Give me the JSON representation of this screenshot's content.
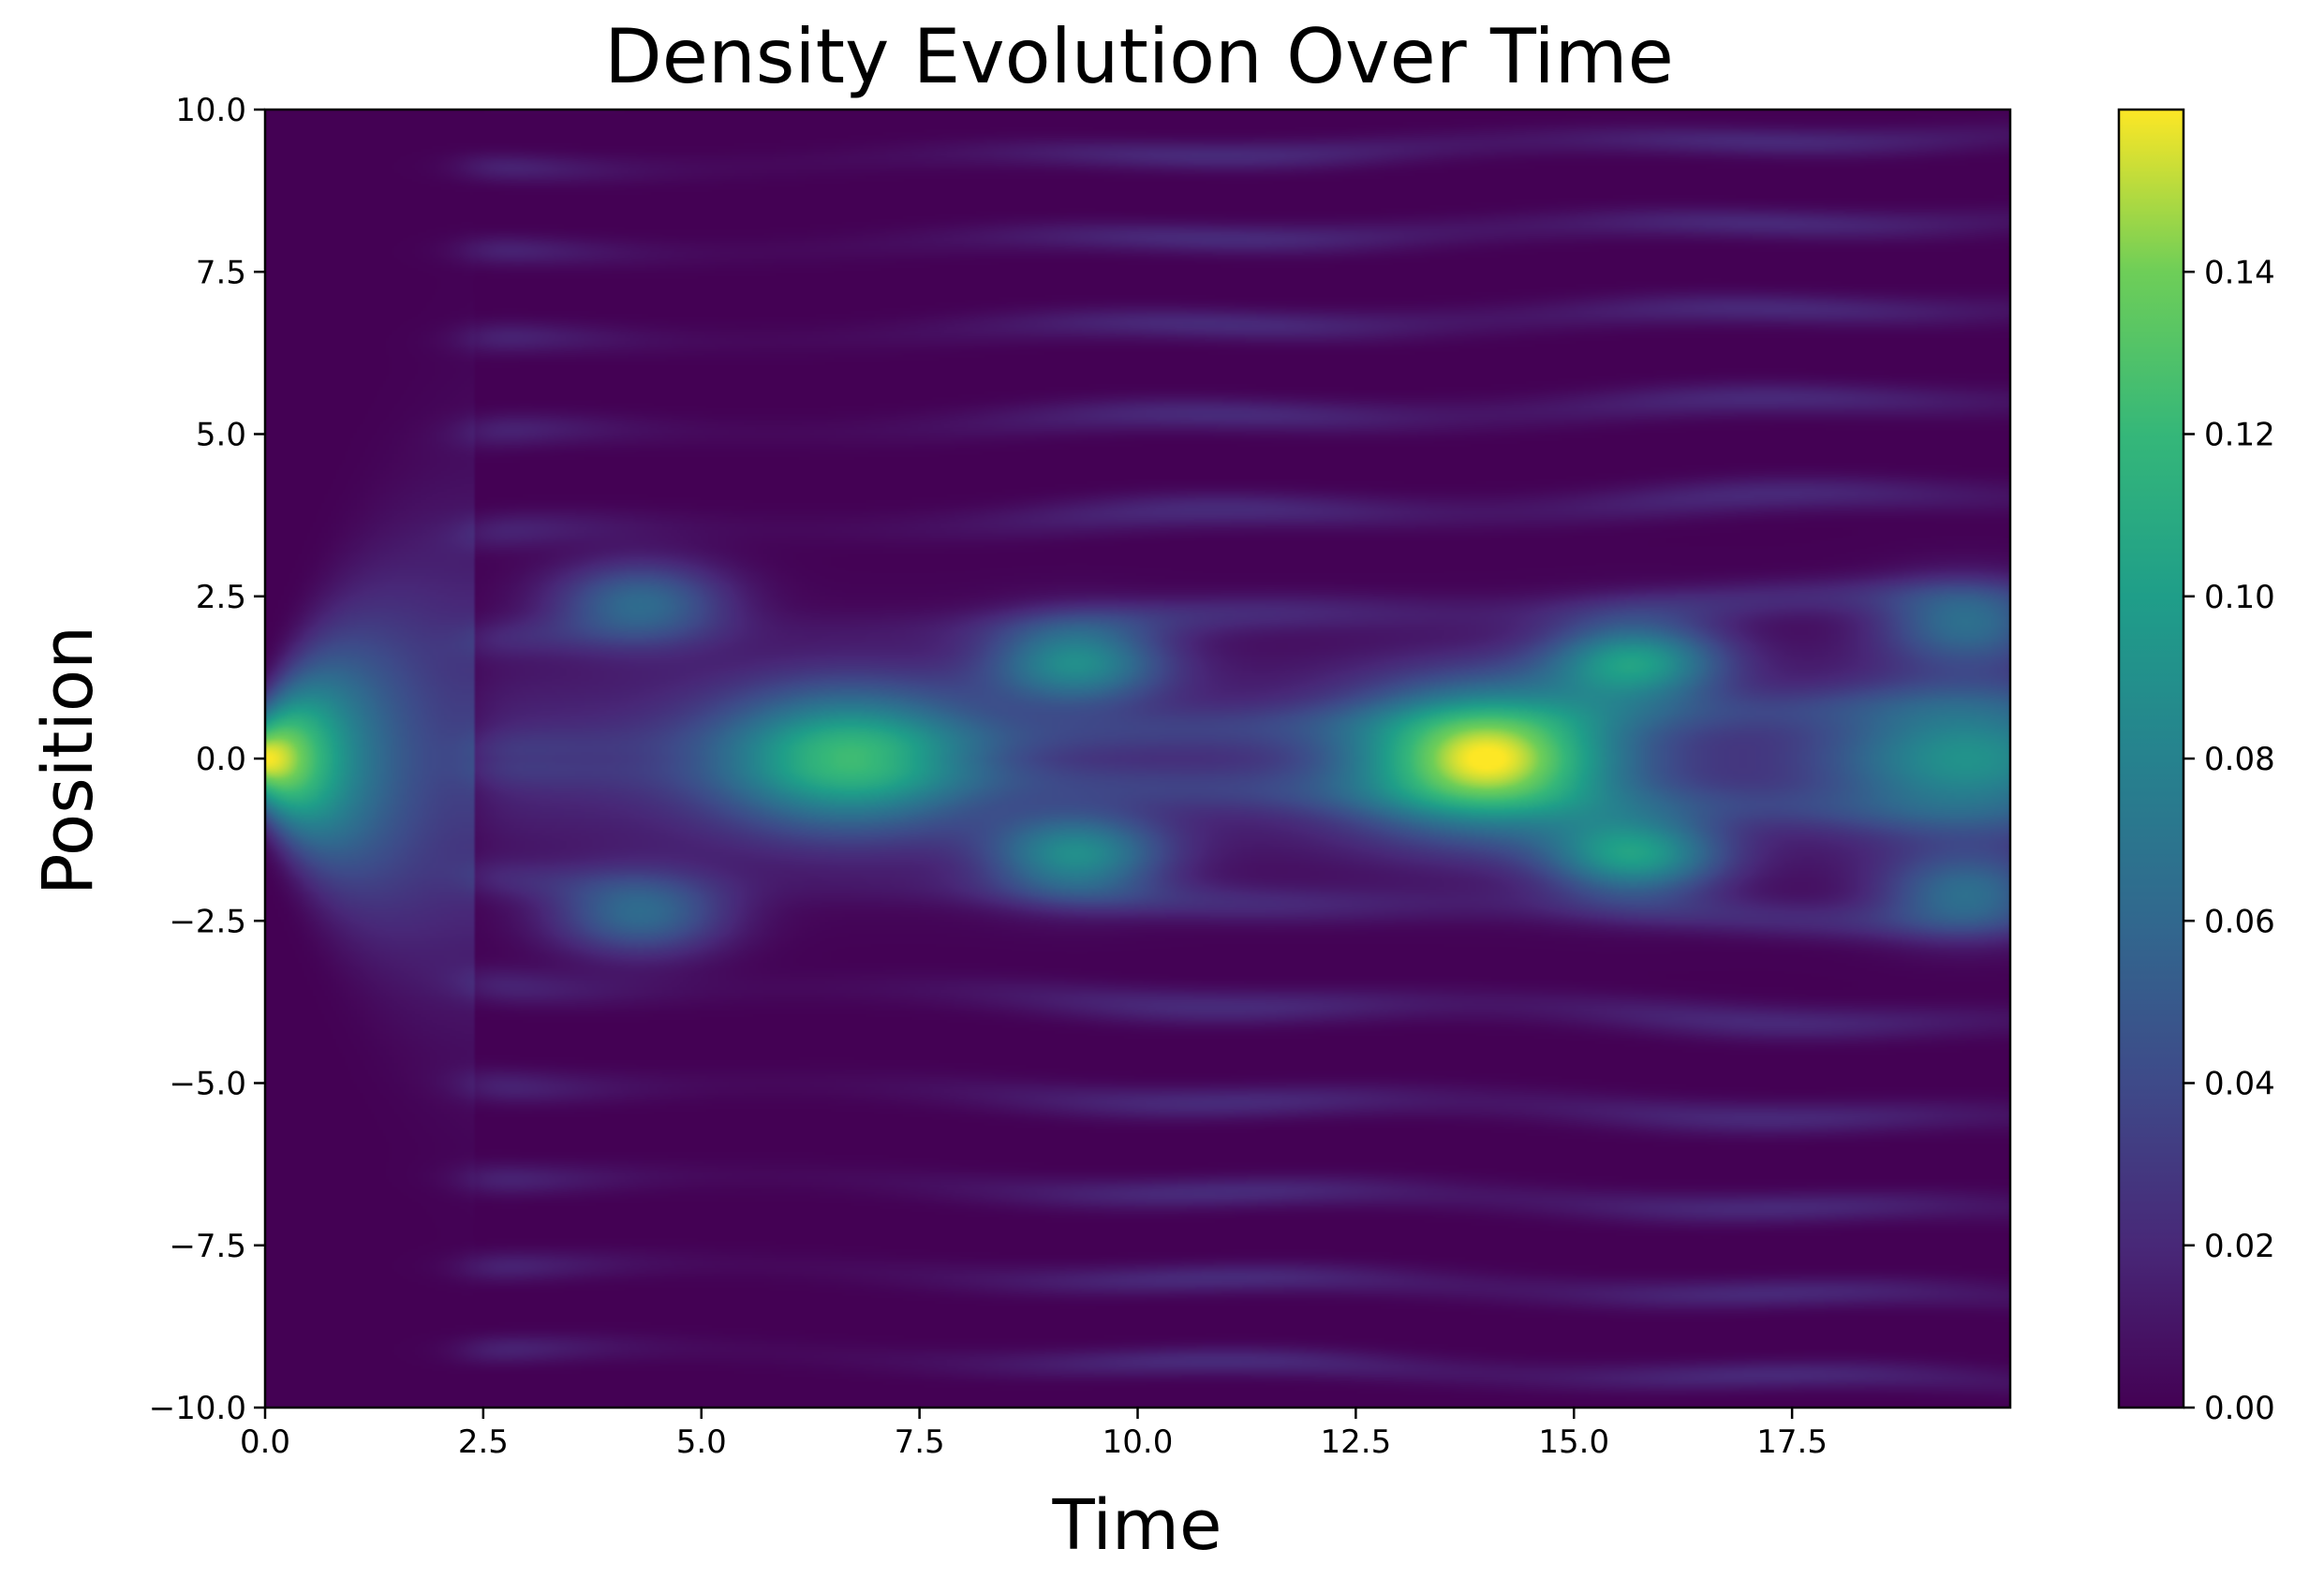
{
  "chart_data": {
    "type": "heatmap",
    "title": "Density Evolution Over Time",
    "xlabel": "Time",
    "ylabel": "Position",
    "xlim": [
      0,
      20
    ],
    "ylim": [
      -10,
      10
    ],
    "xticks": [
      "0.0",
      "2.5",
      "5.0",
      "7.5",
      "10.0",
      "12.5",
      "15.0",
      "17.5"
    ],
    "xtick_values": [
      0,
      2.5,
      5,
      7.5,
      10,
      12.5,
      15,
      17.5
    ],
    "yticks": [
      "10.0",
      "7.5",
      "5.0",
      "2.5",
      "0.0",
      "−2.5",
      "−5.0",
      "−7.5",
      "−10.0"
    ],
    "ytick_values": [
      10,
      7.5,
      5,
      2.5,
      0,
      -2.5,
      -5,
      -7.5,
      -10
    ],
    "colormap": "viridis",
    "colorbar": {
      "range": [
        0,
        0.16
      ],
      "ticks": [
        "0.00",
        "0.02",
        "0.04",
        "0.06",
        "0.08",
        "0.10",
        "0.12",
        "0.14"
      ],
      "tick_values": [
        0,
        0.02,
        0.04,
        0.06,
        0.08,
        0.1,
        0.12,
        0.14
      ]
    },
    "features": [
      {
        "t": 0.0,
        "x": 0.0,
        "density": 0.16
      },
      {
        "t": 6.7,
        "x": 0.0,
        "density": 0.1
      },
      {
        "t": 4.3,
        "x": 2.4,
        "density": 0.06
      },
      {
        "t": 4.3,
        "x": -2.4,
        "density": 0.06
      },
      {
        "t": 9.3,
        "x": 1.5,
        "density": 0.08
      },
      {
        "t": 9.3,
        "x": -1.5,
        "density": 0.08
      },
      {
        "t": 14.0,
        "x": 0.0,
        "density": 0.14
      },
      {
        "t": 15.7,
        "x": 1.5,
        "density": 0.09
      },
      {
        "t": 15.7,
        "x": -1.5,
        "density": 0.09
      },
      {
        "t": 19.5,
        "x": 0.0,
        "density": 0.07
      },
      {
        "t": 19.5,
        "x": 2.1,
        "density": 0.06
      },
      {
        "t": 19.5,
        "x": -2.1,
        "density": 0.06
      }
    ],
    "grid": false
  }
}
